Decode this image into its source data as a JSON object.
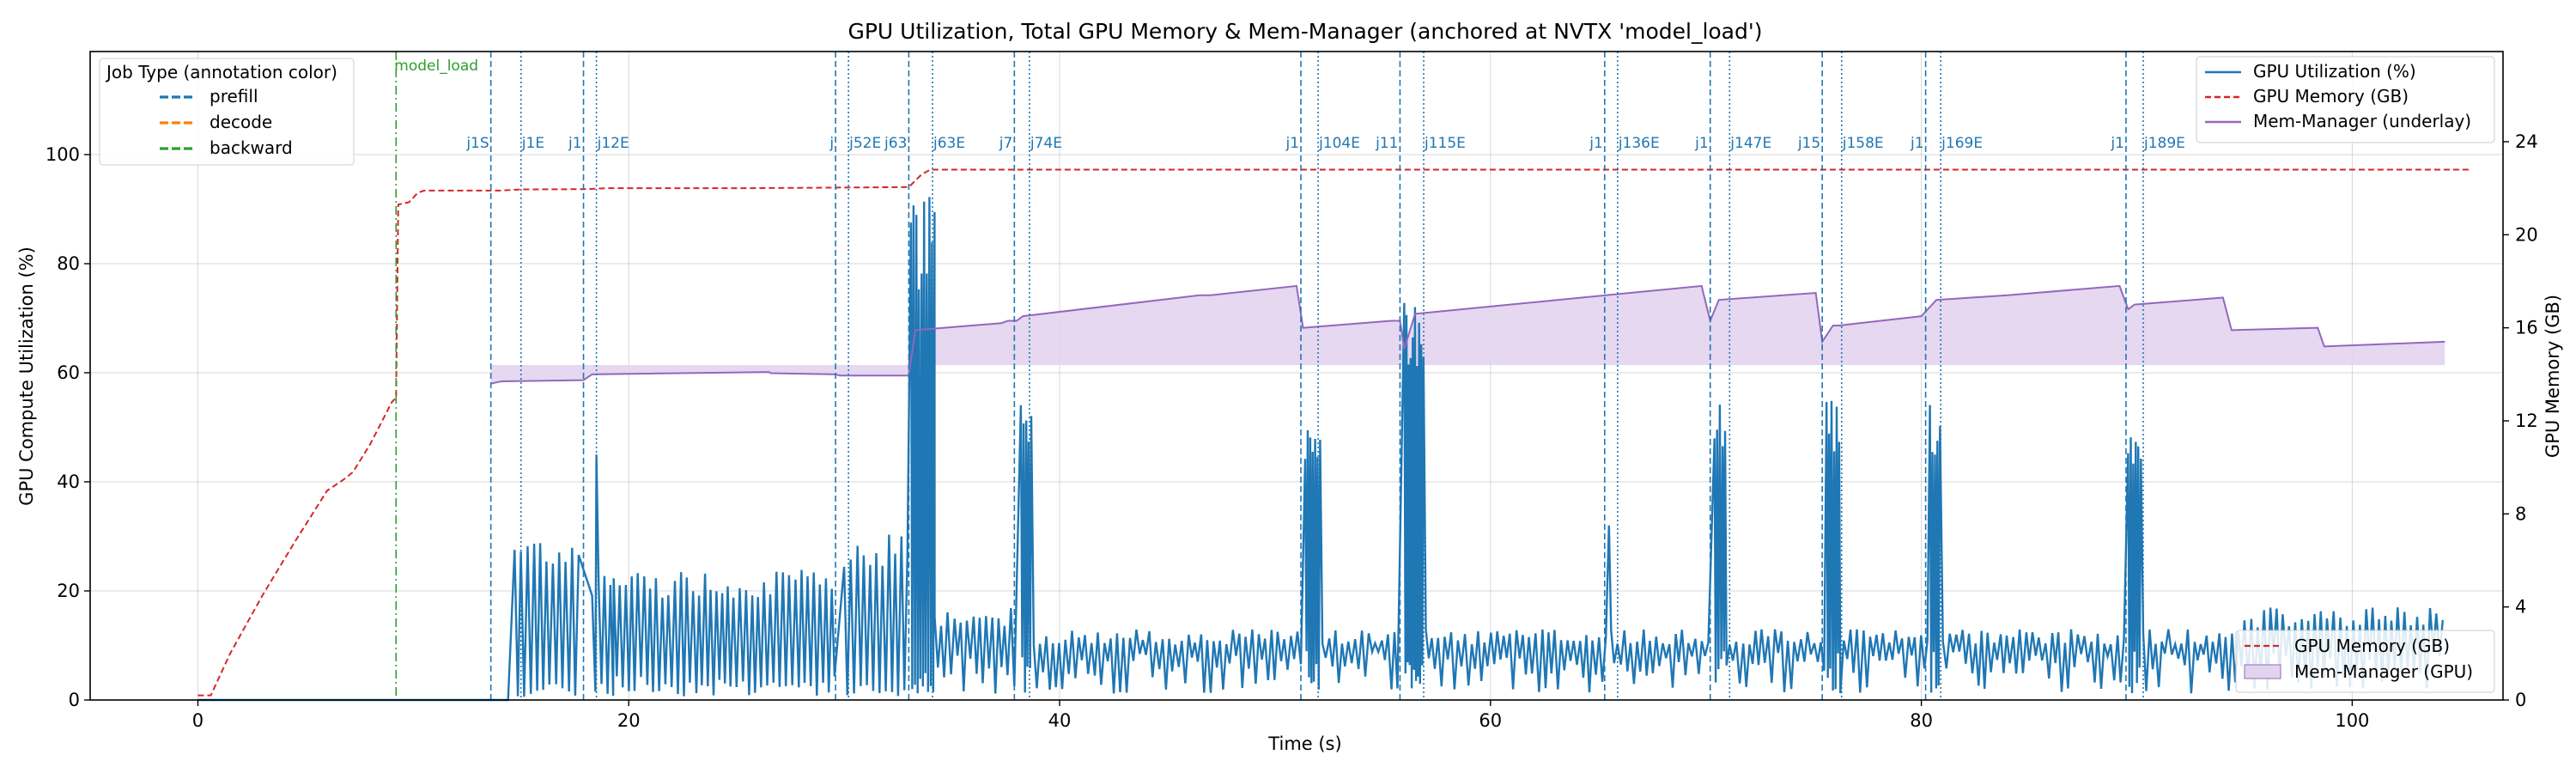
{
  "chart_data": {
    "type": "line",
    "title": "GPU Utilization, Total GPU Memory & Mem-Manager (anchored at NVTX 'model_load')",
    "xlabel": "Time (s)",
    "ylabel": "GPU Compute Utilization (%)",
    "ylabel_right": "GPU Memory (GB)",
    "xlim": [
      -5,
      107
    ],
    "ylim": [
      0,
      100
    ],
    "ylim_right": [
      0,
      24
    ],
    "x_ticks": [
      0,
      20,
      40,
      60,
      80,
      100
    ],
    "y_ticks": [
      0,
      20,
      40,
      60,
      80,
      100
    ],
    "y_ticks_right": [
      0,
      4,
      8,
      12,
      16,
      20,
      24
    ],
    "grid": true,
    "colors": {
      "util": "#1f77b4",
      "memory": "#d62728",
      "memmgr": "#9467bd",
      "memmgr_fill": "#e2d4ee",
      "prefill": "#1f77b4",
      "decode": "#ff7f0e",
      "backward": "#2ca02c"
    },
    "anchor": {
      "label": "model_load",
      "x": 9.2
    },
    "jobs": [
      {
        "start_label": "j1S",
        "end_label": "j1E",
        "start": 13.6,
        "end": 15.0
      },
      {
        "start_label": "j12S",
        "end_label": "j12E",
        "start": 17.9,
        "end": 18.5
      },
      {
        "start_label": "j52S",
        "end_label": "j52E",
        "start": 29.6,
        "end": 30.2
      },
      {
        "start_label": "j63S",
        "end_label": "j63E",
        "start": 33.0,
        "end": 34.1
      },
      {
        "start_label": "j74S",
        "end_label": "j74E",
        "start": 37.9,
        "end": 38.6
      },
      {
        "start_label": "j104S",
        "end_label": "j104E",
        "start": 51.2,
        "end": 52.0
      },
      {
        "start_label": "j115S",
        "end_label": "j115E",
        "start": 55.8,
        "end": 56.9
      },
      {
        "start_label": "j136S",
        "end_label": "j136E",
        "start": 65.3,
        "end": 65.9
      },
      {
        "start_label": "j147S",
        "end_label": "j147E",
        "start": 70.2,
        "end": 71.1
      },
      {
        "start_label": "j158S",
        "end_label": "j158E",
        "start": 75.4,
        "end": 76.3
      },
      {
        "start_label": "j169S",
        "end_label": "j169E",
        "start": 80.2,
        "end": 80.9
      },
      {
        "start_label": "j189S",
        "end_label": "j189E",
        "start": 89.5,
        "end": 90.3
      }
    ],
    "job_label_texts": [
      "j1S",
      "j1E",
      "j1",
      "j12E",
      "j",
      "j52E",
      "j63",
      "j63E",
      "j7",
      "j74E",
      "j1",
      "j104E",
      "j11",
      "j115E",
      "j1",
      "j136E",
      "j1",
      "j147E",
      "j15",
      "j158E",
      "j1",
      "j169E",
      "j1",
      "j189E"
    ],
    "util_segments": [
      {
        "t0": 14.7,
        "t1": 17.8,
        "low": 2,
        "high": 31,
        "period": 0.3
      },
      {
        "t0": 18.3,
        "t1": 19.3,
        "low": 3,
        "high": 24,
        "period": 0.28,
        "peak": {
          "t": 18.5,
          "v": 45
        }
      },
      {
        "t0": 19.3,
        "t1": 29.6,
        "low": 3,
        "high": 24,
        "period": 0.28
      },
      {
        "t0": 30.0,
        "t1": 33.0,
        "low": 2,
        "high": 31,
        "period": 0.3
      },
      {
        "t0": 33.1,
        "t1": 34.2,
        "low": 4,
        "high": 93,
        "period": 0.12
      },
      {
        "t0": 34.2,
        "t1": 37.9,
        "low": 6,
        "high": 17,
        "period": 0.3
      },
      {
        "t0": 38.2,
        "t1": 38.7,
        "low": 6,
        "high": 56,
        "period": 0.12
      },
      {
        "t0": 38.8,
        "t1": 51.2,
        "low": 6,
        "high": 13,
        "period": 0.3
      },
      {
        "t0": 51.4,
        "t1": 52.1,
        "low": 6,
        "high": 56,
        "period": 0.12
      },
      {
        "t0": 52.2,
        "t1": 55.8,
        "low": 6,
        "high": 13,
        "period": 0.3
      },
      {
        "t0": 56.0,
        "t1": 56.9,
        "low": 6,
        "high": 76,
        "period": 0.1
      },
      {
        "t0": 57.0,
        "t1": 65.5,
        "low": 6,
        "high": 13,
        "period": 0.3,
        "peak": {
          "t": 65.5,
          "v": 32
        }
      },
      {
        "t0": 65.6,
        "t1": 70.2,
        "low": 6,
        "high": 13,
        "period": 0.3
      },
      {
        "t0": 70.4,
        "t1": 71.0,
        "low": 6,
        "high": 56,
        "period": 0.12
      },
      {
        "t0": 71.1,
        "t1": 75.5,
        "low": 6,
        "high": 13,
        "period": 0.3
      },
      {
        "t0": 75.6,
        "t1": 76.3,
        "low": 6,
        "high": 56,
        "period": 0.12
      },
      {
        "t0": 76.4,
        "t1": 80.3,
        "low": 6,
        "high": 13,
        "period": 0.3
      },
      {
        "t0": 80.4,
        "t1": 80.9,
        "low": 6,
        "high": 56,
        "period": 0.12
      },
      {
        "t0": 81.0,
        "t1": 89.5,
        "low": 6,
        "high": 13,
        "period": 0.3
      },
      {
        "t0": 89.6,
        "t1": 90.2,
        "low": 6,
        "high": 55,
        "period": 0.12
      },
      {
        "t0": 90.3,
        "t1": 95.0,
        "low": 6,
        "high": 13,
        "period": 0.3
      },
      {
        "t0": 95.0,
        "t1": 104.3,
        "low": 6,
        "high": 17,
        "period": 0.3
      }
    ],
    "memory_gb": {
      "x": [
        0,
        0.6,
        1.5,
        3,
        4.5,
        6,
        6.8,
        7.2,
        8,
        9.0,
        9.2,
        9.3,
        9.8,
        10.2,
        10.5,
        14,
        15,
        17.9,
        19,
        25,
        30,
        33,
        33.6,
        34,
        34.1,
        105.5
      ],
      "y": [
        0.2,
        0.2,
        2.0,
        4.5,
        6.8,
        9.0,
        9.5,
        9.8,
        11.0,
        12.8,
        13.0,
        21.3,
        21.4,
        21.8,
        21.9,
        21.9,
        21.95,
        21.96,
        22.0,
        22.0,
        22.03,
        22.05,
        22.6,
        22.8,
        22.8,
        22.8
      ]
    },
    "memmgr_gb": {
      "x": [
        13.6,
        14.1,
        17.9,
        18.3,
        26.5,
        26.6,
        29.6,
        29.8,
        33.0,
        33.3,
        37.3,
        37.6,
        38.0,
        38.3,
        46.5,
        47.0,
        51.0,
        51.3,
        55.4,
        55.8,
        56.0,
        56.5,
        69.8,
        70.2,
        70.6,
        75.1,
        75.4,
        75.9,
        76.2,
        80.0,
        80.3,
        80.7,
        84.0,
        89.2,
        89.6,
        89.9,
        94.0,
        94.4,
        98.4,
        98.7,
        104.3
      ],
      "y": [
        13.6,
        13.7,
        13.75,
        14.0,
        14.1,
        14.05,
        14.0,
        13.95,
        13.95,
        15.9,
        16.2,
        16.3,
        16.3,
        16.5,
        17.4,
        17.4,
        17.8,
        16.0,
        16.3,
        16.3,
        15.1,
        16.6,
        17.8,
        16.3,
        17.2,
        17.5,
        15.4,
        16.1,
        16.1,
        16.5,
        16.8,
        17.2,
        17.4,
        17.8,
        16.8,
        17.0,
        17.3,
        15.9,
        16.0,
        15.2,
        15.4
      ]
    },
    "memmgr_baseline_gb": 14.4,
    "legend_top_left": {
      "title": "Job Type (annotation color)",
      "entries": [
        "prefill",
        "decode",
        "backward"
      ],
      "placement": "upper-left"
    },
    "legend_top_right": {
      "entries": [
        "GPU Utilization (%)",
        "GPU Memory (GB)",
        "Mem-Manager (underlay)"
      ],
      "placement": "upper-right"
    },
    "legend_bottom_right": {
      "entries": [
        "GPU Memory (GB)",
        "Mem-Manager (GPU)"
      ],
      "placement": "lower-right"
    }
  }
}
